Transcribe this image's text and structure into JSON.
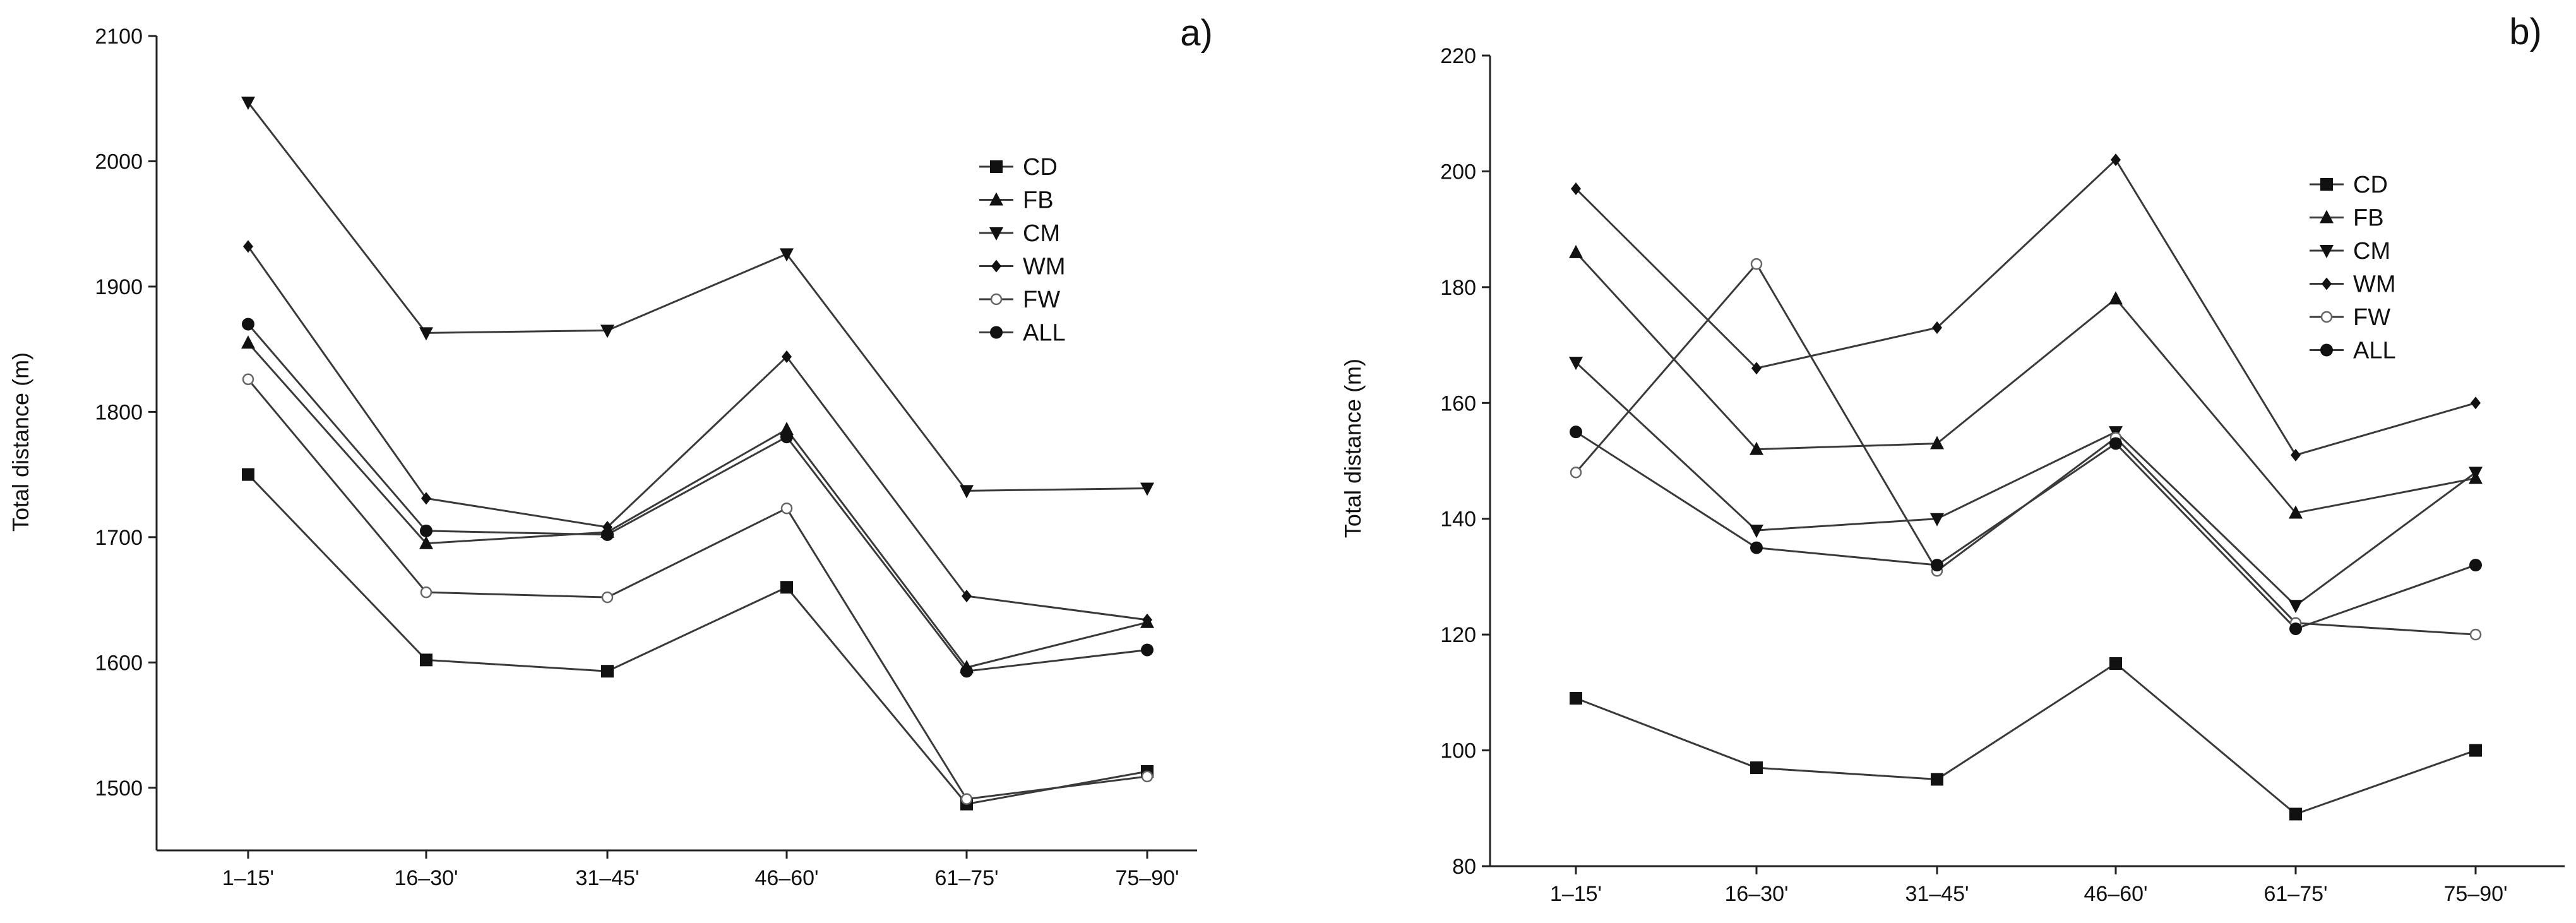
{
  "chart_data": [
    {
      "type": "line",
      "panel_label": "a)",
      "categories": [
        "1–15'",
        "16–30'",
        "31–45'",
        "46–60'",
        "61–75'",
        "75–90'"
      ],
      "xlabel": "",
      "ylabel": "Total distance (m)",
      "ylim": [
        1450,
        2100
      ],
      "yticks": [
        1500,
        1600,
        1700,
        1800,
        1900,
        2000,
        2100
      ],
      "grid": false,
      "legend_position": "top-right",
      "series": [
        {
          "name": "CD",
          "marker": "square",
          "values": [
            1750,
            1602,
            1593,
            1660,
            1487,
            1513
          ]
        },
        {
          "name": "FB",
          "marker": "triangle-up",
          "values": [
            1855,
            1695,
            1704,
            1786,
            1596,
            1632
          ]
        },
        {
          "name": "CM",
          "marker": "triangle-down",
          "values": [
            2047,
            1863,
            1865,
            1926,
            1737,
            1739
          ]
        },
        {
          "name": "WM",
          "marker": "diamond",
          "values": [
            1932,
            1731,
            1708,
            1844,
            1653,
            1634
          ]
        },
        {
          "name": "FW",
          "marker": "circle-open",
          "values": [
            1826,
            1656,
            1652,
            1723,
            1491,
            1509
          ]
        },
        {
          "name": "ALL",
          "marker": "circle",
          "values": [
            1870,
            1705,
            1702,
            1780,
            1593,
            1610
          ]
        }
      ]
    },
    {
      "type": "line",
      "panel_label": "b)",
      "categories": [
        "1–15'",
        "16–30'",
        "31–45'",
        "46–60'",
        "61–75'",
        "75–90'"
      ],
      "xlabel": "",
      "ylabel": "Total distance (m)",
      "ylim": [
        80,
        220
      ],
      "yticks": [
        80,
        100,
        120,
        140,
        160,
        180,
        200,
        220
      ],
      "grid": false,
      "legend_position": "top-right",
      "series": [
        {
          "name": "CD",
          "marker": "square",
          "values": [
            109,
            97,
            95,
            115,
            89,
            100
          ]
        },
        {
          "name": "FB",
          "marker": "triangle-up",
          "values": [
            186,
            152,
            153,
            178,
            141,
            147
          ]
        },
        {
          "name": "CM",
          "marker": "triangle-down",
          "values": [
            167,
            138,
            140,
            155,
            125,
            148
          ]
        },
        {
          "name": "WM",
          "marker": "diamond",
          "values": [
            197,
            166,
            173,
            202,
            151,
            160
          ]
        },
        {
          "name": "FW",
          "marker": "circle-open",
          "values": [
            148,
            184,
            131,
            154,
            122,
            120
          ]
        },
        {
          "name": "ALL",
          "marker": "circle",
          "values": [
            155,
            135,
            132,
            153,
            121,
            132
          ]
        }
      ]
    }
  ]
}
